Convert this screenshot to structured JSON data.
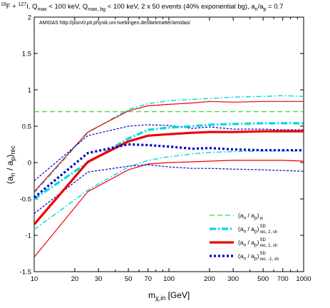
{
  "chart_data": {
    "type": "line",
    "title": "19F + 127I, Qmax < 100 keV, Qmax, bg < 100 keV, 2 x 50 events (40% exponential bg), an/ap = 0.7",
    "title_parts": {
      "sup1": "19",
      "t1": "F + ",
      "sup2": "127",
      "t2": "I, Q",
      "sub1": "max",
      "t3": " < 100 keV, Q",
      "sub2": "max, bg",
      "t4": " < 100 keV, 2 x 50 events (40% exponential bg), a",
      "sub3": "n",
      "t5": "/a",
      "sub4": "p",
      "t6": " = 0.7"
    },
    "credit": "AMIDAS   http://pisrv0.pit.physik.uni-tuebingen.de/darkmatter/amidas/",
    "xlabel_main": "m",
    "xlabel_sub": "χ,in",
    "xlabel_unit": " [GeV]",
    "ylabel_main": "(a",
    "ylabel_sub1": "n",
    "ylabel_mid": " / a",
    "ylabel_sub2": "p",
    "ylabel_end": ")",
    "ylabel_sub3": "rec",
    "xscale": "log",
    "xlim": [
      10,
      1000
    ],
    "ylim": [
      -1.5,
      2
    ],
    "xticks": [
      10,
      20,
      30,
      50,
      70,
      100,
      200,
      300,
      500,
      700,
      1000
    ],
    "xtick_labels": [
      "10",
      "20",
      "30",
      "50",
      "70",
      "100",
      "200",
      "300",
      "500",
      "700",
      "1000"
    ],
    "yticks": [
      -1.5,
      -1,
      -0.5,
      0,
      0.5,
      1,
      1.5,
      2
    ],
    "ytick_labels": [
      "-1.5",
      "-1",
      "-0.5",
      "0",
      "0.5",
      "1",
      "1.5",
      "2"
    ],
    "legend_position": "bottom-right",
    "colors": {
      "input": "#33dd33",
      "sd2": "#00d8e0",
      "sd1": "#ee0000",
      "sdm1": "#0000cc"
    },
    "series": [
      {
        "id": "in",
        "legend_main": "(a",
        "legend_sub1": "n",
        "legend_mid": " / a",
        "legend_sub2": "p",
        "legend_end": ")",
        "legend_lower": "in",
        "legend_upper": "",
        "x": [
          10,
          1000
        ],
        "y": [
          0.7,
          0.7
        ]
      },
      {
        "id": "sd2",
        "legend_main": "(a",
        "legend_sub1": "n",
        "legend_mid": " / a",
        "legend_sub2": "p",
        "legend_end": ")",
        "legend_lower": "rec, 2, sh",
        "legend_upper": "SD",
        "x": [
          10,
          25,
          50,
          70,
          100,
          150,
          200,
          300,
          500,
          700,
          1000
        ],
        "y": [
          -0.5,
          0.0,
          0.33,
          0.45,
          0.48,
          0.5,
          0.52,
          0.53,
          0.54,
          0.54,
          0.54
        ],
        "upper": [
          -0.42,
          0.41,
          0.73,
          0.81,
          0.85,
          0.87,
          0.88,
          0.9,
          0.91,
          0.92,
          0.91
        ],
        "lower": [
          -0.92,
          -0.38,
          -0.06,
          0.03,
          0.08,
          0.12,
          0.14,
          0.15,
          0.16,
          0.16,
          0.16
        ]
      },
      {
        "id": "sd1",
        "legend_main": "(a",
        "legend_sub1": "n",
        "legend_mid": " / a",
        "legend_sub2": "p",
        "legend_end": ")",
        "legend_lower": "rec, 1, sh",
        "legend_upper": "SD",
        "x": [
          10,
          25,
          50,
          70,
          100,
          150,
          200,
          300,
          500,
          700,
          1000
        ],
        "y": [
          -0.85,
          0.01,
          0.29,
          0.37,
          0.39,
          0.41,
          0.42,
          0.42,
          0.43,
          0.43,
          0.43
        ],
        "upper": [
          -0.4,
          0.42,
          0.71,
          0.78,
          0.8,
          0.82,
          0.84,
          0.83,
          0.84,
          0.84,
          0.84
        ],
        "lower": [
          -1.3,
          -0.4,
          -0.1,
          -0.02,
          0.0,
          0.01,
          0.02,
          0.03,
          0.03,
          0.03,
          0.02
        ]
      },
      {
        "id": "sdm1",
        "legend_main": "(a",
        "legend_sub1": "n",
        "legend_mid": " / a",
        "legend_sub2": "p",
        "legend_end": ")",
        "legend_lower": "rec, -1, sh",
        "legend_upper": "SD",
        "x": [
          10,
          25,
          50,
          70,
          100,
          150,
          200,
          300,
          500,
          700,
          1000
        ],
        "y": [
          -0.48,
          0.13,
          0.25,
          0.24,
          0.22,
          0.19,
          0.2,
          0.18,
          0.17,
          0.17,
          0.17
        ],
        "upper": [
          -0.25,
          0.37,
          0.5,
          0.52,
          0.51,
          0.47,
          0.49,
          0.46,
          0.46,
          0.45,
          0.45
        ],
        "lower": [
          -0.7,
          -0.13,
          -0.05,
          -0.03,
          -0.06,
          -0.08,
          -0.08,
          -0.09,
          -0.1,
          -0.11,
          -0.12
        ]
      }
    ]
  }
}
